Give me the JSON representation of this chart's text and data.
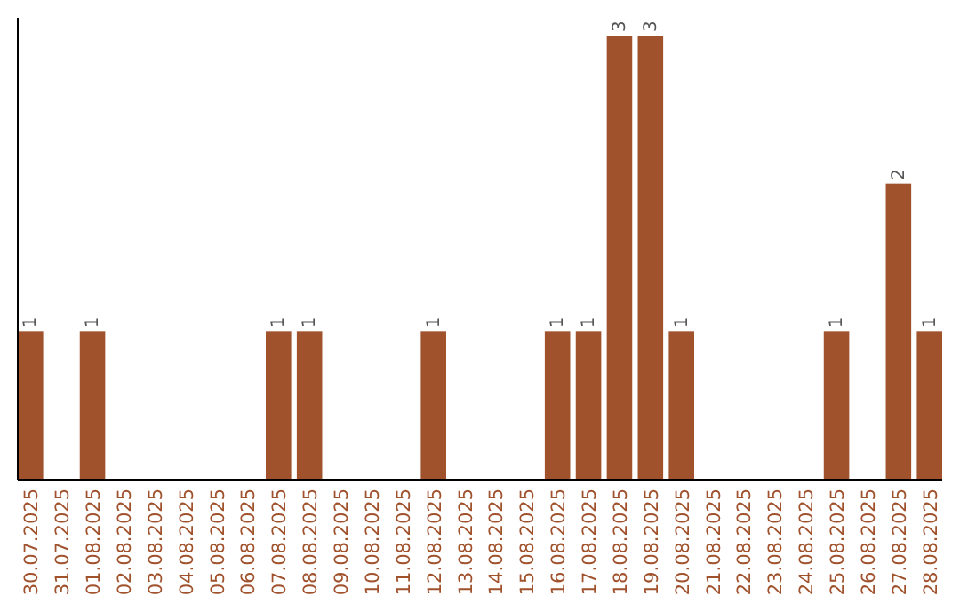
{
  "chart_data": {
    "type": "bar",
    "categories": [
      "30.07.2025",
      "31.07.2025",
      "01.08.2025",
      "02.08.2025",
      "03.08.2025",
      "04.08.2025",
      "05.08.2025",
      "06.08.2025",
      "07.08.2025",
      "08.08.2025",
      "09.08.2025",
      "10.08.2025",
      "11.08.2025",
      "12.08.2025",
      "13.08.2025",
      "14.08.2025",
      "15.08.2025",
      "16.08.2025",
      "17.08.2025",
      "18.08.2025",
      "19.08.2025",
      "20.08.2025",
      "21.08.2025",
      "22.08.2025",
      "23.08.2025",
      "24.08.2025",
      "25.08.2025",
      "26.08.2025",
      "27.08.2025",
      "28.08.2025"
    ],
    "values": [
      1,
      0,
      1,
      0,
      0,
      0,
      0,
      0,
      1,
      1,
      0,
      0,
      0,
      1,
      0,
      0,
      0,
      1,
      1,
      3,
      3,
      1,
      0,
      0,
      0,
      0,
      1,
      0,
      2,
      1
    ],
    "value_labels": [
      "1",
      null,
      "1",
      null,
      null,
      null,
      null,
      null,
      "1",
      "1",
      null,
      null,
      null,
      "1",
      null,
      null,
      null,
      "1",
      "1",
      "3",
      "3",
      "1",
      null,
      null,
      null,
      null,
      "1",
      null,
      "2",
      "1"
    ],
    "color": "#a0522d",
    "tick_labels": "x"
  }
}
